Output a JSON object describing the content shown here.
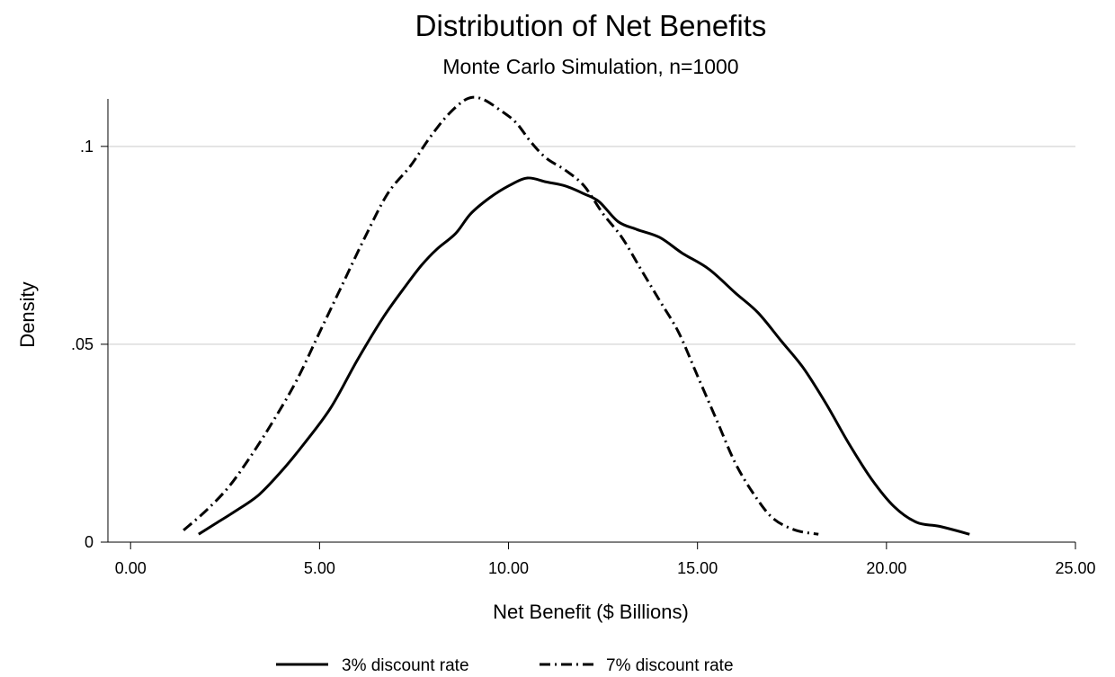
{
  "chart_data": {
    "type": "line",
    "title": "Distribution of Net Benefits",
    "subtitle": "Monte Carlo Simulation, n=1000",
    "xlabel": "Net Benefit ($ Billions)",
    "ylabel": "Density",
    "xlim": [
      -0.6,
      25.0
    ],
    "ylim": [
      0,
      0.112
    ],
    "x_ticks": [
      0,
      5,
      10,
      15,
      20,
      25
    ],
    "x_tick_labels": [
      "0.00",
      "5.00",
      "10.00",
      "15.00",
      "20.00",
      "25.00"
    ],
    "y_ticks": [
      0,
      0.05,
      0.1
    ],
    "y_tick_labels": [
      "0",
      ".05",
      ".1"
    ],
    "grid": "horizontal",
    "legend_position": "bottom",
    "series": [
      {
        "name": "3% discount rate",
        "line_style": "solid",
        "color": "#000000",
        "x": [
          1.8,
          2.3,
          2.8,
          3.4,
          4.0,
          4.6,
          5.3,
          6.0,
          6.7,
          7.3,
          7.7,
          8.1,
          8.6,
          9.0,
          9.5,
          10.0,
          10.5,
          11.0,
          11.5,
          12.0,
          12.4,
          12.9,
          13.4,
          14.0,
          14.6,
          15.3,
          16.0,
          16.6,
          17.2,
          17.8,
          18.4,
          19.0,
          19.6,
          20.2,
          20.8,
          21.4,
          22.2
        ],
        "y": [
          0.002,
          0.005,
          0.008,
          0.012,
          0.018,
          0.025,
          0.034,
          0.046,
          0.057,
          0.065,
          0.07,
          0.074,
          0.078,
          0.083,
          0.087,
          0.09,
          0.092,
          0.091,
          0.09,
          0.088,
          0.086,
          0.081,
          0.079,
          0.077,
          0.073,
          0.069,
          0.063,
          0.058,
          0.051,
          0.044,
          0.035,
          0.025,
          0.016,
          0.009,
          0.005,
          0.004,
          0.002
        ]
      },
      {
        "name": "7% discount rate",
        "line_style": "dash-dot",
        "color": "#000000",
        "x": [
          1.4,
          2.0,
          2.6,
          3.2,
          3.8,
          4.4,
          5.0,
          5.6,
          6.2,
          6.8,
          7.4,
          7.9,
          8.4,
          8.9,
          9.3,
          9.8,
          10.2,
          10.6,
          11.0,
          11.5,
          12.0,
          12.5,
          13.0,
          13.5,
          14.0,
          14.5,
          15.0,
          15.5,
          16.0,
          16.5,
          17.0,
          17.6,
          18.2
        ],
        "y": [
          0.003,
          0.008,
          0.014,
          0.022,
          0.031,
          0.041,
          0.053,
          0.065,
          0.077,
          0.088,
          0.095,
          0.102,
          0.108,
          0.112,
          0.112,
          0.109,
          0.106,
          0.101,
          0.097,
          0.094,
          0.09,
          0.083,
          0.077,
          0.069,
          0.061,
          0.053,
          0.042,
          0.031,
          0.02,
          0.012,
          0.006,
          0.003,
          0.002
        ]
      }
    ]
  }
}
